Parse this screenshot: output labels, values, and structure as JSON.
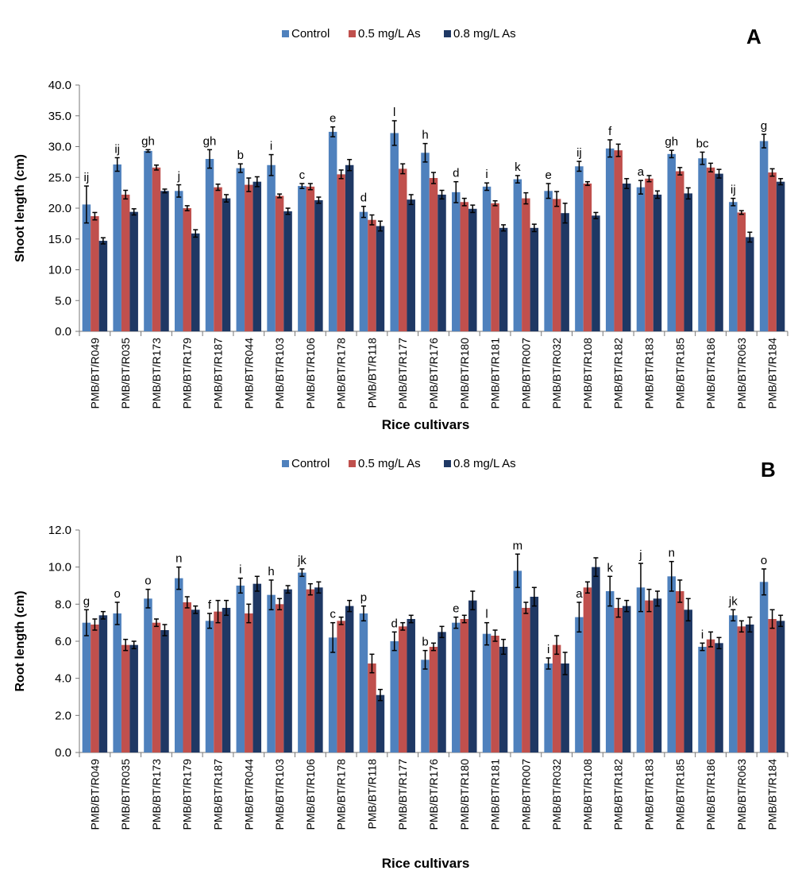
{
  "colors": {
    "control": "#4F81BD",
    "mid": "#C0504D",
    "high": "#1F3864"
  },
  "chart_data": [
    {
      "type": "bar",
      "panel": "A",
      "xlabel": "Rice cultivars",
      "ylabel": "Shoot length (cm)",
      "ylim": [
        0,
        40
      ],
      "yticks": [
        "0.0",
        "5.0",
        "10.0",
        "15.0",
        "20.0",
        "25.0",
        "30.0",
        "35.0",
        "40.0"
      ],
      "legend": [
        "Control",
        "0.5 mg/L As",
        "0.8 mg/L As"
      ],
      "legend_position": "top-center",
      "grid": false,
      "categories": [
        "PMB/BT/R049",
        "PMB/BT/R035",
        "PMB/BT/R173",
        "PMB/BT/R179",
        "PMB/BT/R187",
        "PMB/BT/R044",
        "PMB/BT/R103",
        "PMB/BT/R106",
        "PMB/BT/R178",
        "PMB/BT/R118",
        "PMB/BT/R177",
        "PMB/BT/R176",
        "PMB/BT/R180",
        "PMB/BT/R181",
        "PMB/BT/R007",
        "PMB/BT/R032",
        "PMB/BT/R108",
        "PMB/BT/R182",
        "PMB/BT/R183",
        "PMB/BT/R185",
        "PMB/BT/R186",
        "PMB/BT/R063",
        "PMB/BT/R184"
      ],
      "letters": [
        "ij",
        "ij",
        "gh",
        "j",
        "gh",
        "b",
        "i",
        "c",
        "e",
        "d",
        "l",
        "h",
        "d",
        "i",
        "k",
        "e",
        "ij",
        "f",
        "a",
        "gh",
        "bc",
        "ij",
        "g"
      ],
      "series": [
        {
          "name": "Control",
          "values": [
            20.6,
            27.1,
            29.3,
            22.8,
            28.0,
            26.5,
            27.0,
            23.6,
            32.4,
            19.4,
            32.2,
            29.0,
            22.6,
            23.5,
            24.7,
            22.8,
            26.8,
            29.7,
            23.4,
            28.8,
            28.1,
            21.0,
            30.9
          ],
          "errors": [
            3.0,
            1.1,
            0.2,
            1.0,
            1.5,
            0.7,
            1.7,
            0.4,
            0.8,
            0.9,
            2.0,
            1.5,
            1.7,
            0.6,
            0.6,
            1.2,
            0.8,
            1.4,
            1.1,
            0.6,
            1.0,
            0.6,
            1.1
          ]
        },
        {
          "name": "0.5 mg/L As",
          "values": [
            18.7,
            22.2,
            26.6,
            20.0,
            23.4,
            23.8,
            22.0,
            23.5,
            25.5,
            18.1,
            26.4,
            24.9,
            21.0,
            20.8,
            21.6,
            21.5,
            24.0,
            29.4,
            24.8,
            26.0,
            26.6,
            19.3,
            25.8
          ],
          "errors": [
            0.6,
            0.7,
            0.4,
            0.4,
            0.5,
            1.1,
            0.3,
            0.5,
            0.7,
            0.8,
            0.8,
            0.9,
            0.6,
            0.4,
            0.9,
            1.2,
            0.3,
            1.0,
            0.5,
            0.6,
            0.7,
            0.3,
            0.6
          ]
        },
        {
          "name": "0.8 mg/L As",
          "values": [
            14.7,
            19.4,
            22.8,
            15.9,
            21.6,
            24.3,
            19.5,
            21.3,
            27.0,
            17.1,
            21.4,
            22.2,
            19.9,
            16.8,
            16.8,
            19.2,
            18.8,
            24.0,
            22.2,
            22.4,
            25.6,
            15.3,
            24.3
          ],
          "errors": [
            0.5,
            0.5,
            0.3,
            0.6,
            0.6,
            0.8,
            0.5,
            0.5,
            0.9,
            0.8,
            0.8,
            0.7,
            0.6,
            0.5,
            0.6,
            1.6,
            0.5,
            0.8,
            0.6,
            0.9,
            0.7,
            0.8,
            0.5
          ]
        }
      ]
    },
    {
      "type": "bar",
      "panel": "B",
      "xlabel": "Rice cultivars",
      "ylabel": "Root length (cm)",
      "ylim": [
        0,
        12
      ],
      "yticks": [
        "0.0",
        "2.0",
        "4.0",
        "6.0",
        "8.0",
        "10.0",
        "12.0"
      ],
      "legend": [
        "Control",
        "0.5 mg/L As",
        "0.8 mg/L As"
      ],
      "legend_position": "top-center",
      "grid": false,
      "categories": [
        "PMB/BT/R049",
        "PMB/BT/R035",
        "PMB/BT/R173",
        "PMB/BT/R179",
        "PMB/BT/R187",
        "PMB/BT/R044",
        "PMB/BT/R103",
        "PMB/BT/R106",
        "PMB/BT/R178",
        "PMB/BT/R118",
        "PMB/BT/R177",
        "PMB/BT/R176",
        "PMB/BT/R180",
        "PMB/BT/R181",
        "PMB/BT/R007",
        "PMB/BT/R032",
        "PMB/BT/R108",
        "PMB/BT/R182",
        "PMB/BT/R183",
        "PMB/BT/R185",
        "PMB/BT/R186",
        "PMB/BT/R063",
        "PMB/BT/R184"
      ],
      "letters": [
        "g",
        "o",
        "o",
        "n",
        "f",
        "i",
        "h",
        "jk",
        "c",
        "p",
        "d",
        "b",
        "e",
        "l",
        "m",
        "i",
        "a",
        "k",
        "j",
        "n",
        "i",
        "jk",
        "o"
      ],
      "series": [
        {
          "name": "Control",
          "values": [
            7.0,
            7.5,
            8.3,
            9.4,
            7.1,
            9.0,
            8.5,
            9.7,
            6.2,
            7.5,
            6.0,
            5.0,
            7.0,
            6.4,
            9.8,
            4.8,
            7.3,
            8.7,
            8.9,
            9.5,
            5.7,
            7.4,
            9.2
          ],
          "errors": [
            0.7,
            0.6,
            0.5,
            0.6,
            0.4,
            0.4,
            0.8,
            0.2,
            0.8,
            0.4,
            0.5,
            0.5,
            0.3,
            0.6,
            0.9,
            0.3,
            0.8,
            0.8,
            1.3,
            0.8,
            0.2,
            0.3,
            0.7
          ]
        },
        {
          "name": "0.5 mg/L As",
          "values": [
            6.9,
            5.8,
            7.0,
            8.1,
            7.6,
            7.5,
            8.0,
            8.8,
            7.1,
            4.8,
            6.8,
            5.7,
            7.2,
            6.3,
            7.8,
            5.8,
            8.9,
            7.8,
            8.2,
            8.7,
            6.1,
            6.8,
            7.2
          ],
          "errors": [
            0.3,
            0.3,
            0.2,
            0.3,
            0.6,
            0.5,
            0.3,
            0.3,
            0.2,
            0.5,
            0.2,
            0.2,
            0.2,
            0.3,
            0.3,
            0.5,
            0.3,
            0.5,
            0.6,
            0.6,
            0.4,
            0.3,
            0.5
          ]
        },
        {
          "name": "0.8 mg/L As",
          "values": [
            7.4,
            5.8,
            6.6,
            7.7,
            7.8,
            9.1,
            8.8,
            8.9,
            7.9,
            3.1,
            7.2,
            6.5,
            8.2,
            5.7,
            8.4,
            4.8,
            10.0,
            7.9,
            8.3,
            7.7,
            5.9,
            6.9,
            7.1
          ],
          "errors": [
            0.2,
            0.2,
            0.3,
            0.2,
            0.4,
            0.4,
            0.2,
            0.3,
            0.3,
            0.3,
            0.2,
            0.3,
            0.5,
            0.4,
            0.5,
            0.6,
            0.5,
            0.3,
            0.4,
            0.6,
            0.3,
            0.4,
            0.3
          ]
        }
      ]
    }
  ]
}
